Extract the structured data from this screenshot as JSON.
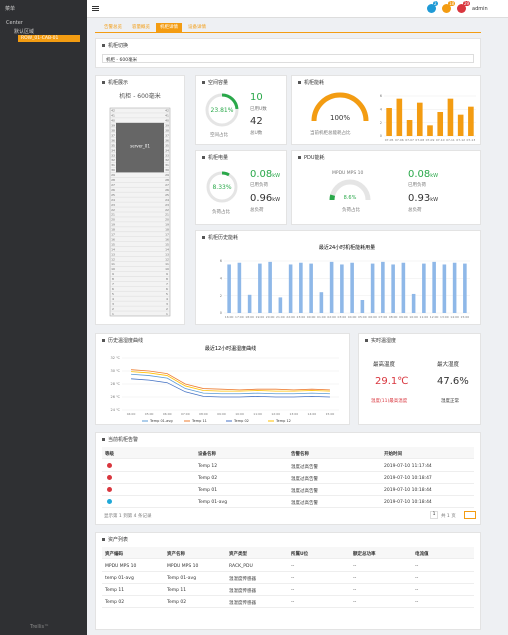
{
  "sidebar": {
    "title": "菜单",
    "tree": [
      "Center",
      "默认区域",
      "ROW_01-CAB-01"
    ],
    "footer": "Trellis™"
  },
  "header": {
    "badges": [
      "2",
      "18",
      "29"
    ],
    "user": "admin"
  },
  "tabs": [
    "告警总览",
    "容量概览",
    "机柜详情",
    "设备详情"
  ],
  "switch": {
    "title": "机柜切换",
    "selected": "机柜 - 600毫米"
  },
  "cabinet": {
    "title": "机柜展示",
    "name": "机柜 - 600毫米",
    "device": "server_01",
    "device_u": [
      29,
      38
    ],
    "units": [
      42,
      41,
      40,
      39,
      38,
      37,
      36,
      35,
      34,
      33,
      32,
      31,
      30,
      29,
      28,
      27,
      26,
      25,
      24,
      23,
      22,
      21,
      20,
      19,
      18,
      17,
      16,
      15,
      14,
      13,
      12,
      11,
      10,
      9,
      8,
      7,
      6,
      5,
      4,
      3,
      2,
      1
    ]
  },
  "space": {
    "title": "空间容量",
    "percent": 23.81,
    "percent_label": "23.81%",
    "caption": "空间占比",
    "used": 10,
    "used_label": "已用U数",
    "total": 42,
    "total_label": "总U数"
  },
  "energy": {
    "title": "机柜能耗",
    "percent": 100,
    "percent_label": "100%",
    "caption": "当前机柜总能耗占比"
  },
  "power": {
    "title": "机柜电量",
    "percent": 8.33,
    "percent_label": "8.33%",
    "caption": "负荷占比",
    "used": 0.08,
    "used_unit": "kW",
    "used_label": "已用负荷",
    "total": 0.96,
    "total_unit": "kW",
    "total_label": "总负荷"
  },
  "pdu": {
    "title": "PDU能耗",
    "name": "MPDU MPS 10",
    "percent": 8.6,
    "percent_label": "8.6%",
    "caption": "负荷占比",
    "used": 0.08,
    "used_unit": "kW",
    "used_label": "已用负荷",
    "total": 0.93,
    "total_unit": "kW",
    "total_label": "总负荷"
  },
  "history": {
    "title": "机柜历史能耗"
  },
  "temp_panel": {
    "title": "历史温湿度曲线"
  },
  "realtime": {
    "title": "实时温湿度",
    "temp_label": "最高温度",
    "temp": "29.1℃",
    "temp_note": "温度(11)最高温度",
    "hum_label": "最大湿度",
    "hum": "47.6%",
    "hum_note": "湿度正常"
  },
  "chart_data": [
    {
      "type": "bar",
      "color": "#f39c12",
      "categories": [
        "07-05",
        "07-06",
        "07-07",
        "07-08",
        "07-09",
        "07-10",
        "07-11",
        "07-12",
        "07-13"
      ],
      "values": [
        4.2,
        5.6,
        2.4,
        5.0,
        1.6,
        3.6,
        5.6,
        3.2,
        4.4
      ],
      "ylim": [
        0,
        6
      ],
      "yticks": [
        0,
        2,
        4,
        6
      ]
    },
    {
      "type": "bar",
      "title": "最近24小时机柜能耗用量",
      "color": "#8fb8e8",
      "categories": [
        "16:00",
        "17:00",
        "18:00",
        "19:00",
        "20:00",
        "21:00",
        "22:00",
        "23:00",
        "00:00",
        "01:00",
        "02:00",
        "03:00",
        "04:00",
        "05:00",
        "06:00",
        "07:00",
        "08:00",
        "09:00",
        "10:00",
        "11:00",
        "12:00",
        "13:00",
        "14:00",
        "15:00"
      ],
      "values": [
        5.6,
        5.8,
        2.1,
        5.7,
        5.9,
        1.8,
        5.6,
        5.8,
        5.7,
        2.4,
        5.9,
        5.6,
        5.8,
        1.5,
        5.7,
        5.9,
        5.6,
        5.8,
        2.2,
        5.7,
        5.9,
        5.6,
        5.8,
        5.7
      ],
      "ylim": [
        0,
        6
      ],
      "yticks": [
        0,
        2,
        4,
        6
      ],
      "grid": true
    },
    {
      "type": "line",
      "title": "最近12小时温湿度曲线",
      "categories": [
        "04:00",
        "05:00",
        "06:00",
        "07:00",
        "08:00",
        "09:00",
        "10:00",
        "11:00",
        "12:00",
        "13:00",
        "14:00",
        "15:00"
      ],
      "ylim": [
        24,
        32
      ],
      "yticks": [
        {
          "value": 24,
          "label": "24 ℃"
        },
        {
          "value": 26,
          "label": "26 ℃"
        },
        {
          "value": 28,
          "label": "28 ℃"
        },
        {
          "value": 30,
          "label": "30 ℃"
        },
        {
          "value": 32,
          "label": "32 ℃"
        }
      ],
      "grid": true,
      "series": [
        {
          "name": "Temp 01-avg",
          "color": "#5b9bd5",
          "values": [
            29.5,
            29.3,
            28.9,
            27.3,
            26.6,
            26.5,
            26.5,
            26.6,
            26.5,
            26.5,
            26.6,
            26.5
          ]
        },
        {
          "name": "Temp 11",
          "color": "#ed7d31",
          "values": [
            30.2,
            30.0,
            29.6,
            28.0,
            27.3,
            27.2,
            27.1,
            27.2,
            27.2,
            27.1,
            27.2,
            27.1
          ]
        },
        {
          "name": "Temp 02",
          "color": "#4472c4",
          "values": [
            28.8,
            28.6,
            28.2,
            26.8,
            26.1,
            26.0,
            26.0,
            26.1,
            26.0,
            26.0,
            26.1,
            26.0
          ]
        },
        {
          "name": "Temp 12",
          "color": "#ffc000",
          "values": [
            29.9,
            29.7,
            29.3,
            27.7,
            27.0,
            26.9,
            26.9,
            27.0,
            26.9,
            26.9,
            27.0,
            26.9
          ]
        }
      ]
    }
  ],
  "alarms": {
    "title": "当前机柜告警",
    "columns": [
      "等级",
      "设备名称",
      "告警名称",
      "开始时间"
    ],
    "level_colors": [
      "#d9363e",
      "#d9363e",
      "#d9363e",
      "#1fa8d8"
    ],
    "rows": [
      [
        "Temp 12",
        "温度过高告警",
        "2019-07-10 11:17:44"
      ],
      [
        "Temp 02",
        "温度过高告警",
        "2019-07-10 10:18:47"
      ],
      [
        "Temp 01",
        "温度过高告警",
        "2019-07-10 10:18:44"
      ],
      [
        "Temp 01-avg",
        "温度过高告警",
        "2019-07-10 10:18:44"
      ]
    ],
    "footer": "显示第 1 到第 4 条记录",
    "page": "1",
    "pages": "共 1 页"
  },
  "assets": {
    "title": "资产列表",
    "columns": [
      "资产编码",
      "资产名称",
      "资产类型",
      "所属U位",
      "额定总功率",
      "电流值"
    ],
    "rows": [
      [
        "MPDU MPS 10",
        "MPDU MPS 10",
        "RACK_PDU",
        "--",
        "--",
        "--"
      ],
      [
        "temp 01-avg",
        "Temp 01-avg",
        "温湿度传感器",
        "--",
        "--",
        "--"
      ],
      [
        "Temp 11",
        "Temp 11",
        "温湿度传感器",
        "--",
        "--",
        "--"
      ],
      [
        "Temp 02",
        "Temp 02",
        "温湿度传感器",
        "--",
        "--",
        "--"
      ]
    ]
  }
}
